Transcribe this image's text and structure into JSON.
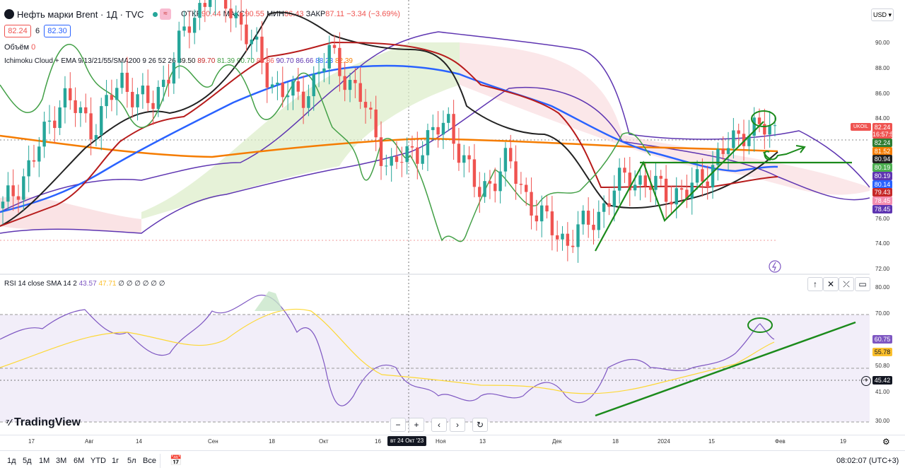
{
  "header": {
    "symbol_title": "Нефть марки Brent · 1Д · TVC",
    "otkr_label": "ОТКР",
    "otkr": "90.44",
    "maks_label": "МАКС",
    "maks": "90.55",
    "min_label": "МИН",
    "min": "86.43",
    "zakr_label": "ЗАКР",
    "zakr": "87.11",
    "change": "−3.34 (−3.69%)",
    "bid": "82.24",
    "spread": "6",
    "ask": "82.30",
    "currency": "USD"
  },
  "indicators": {
    "volume_label": "Объём",
    "volume_value": "0",
    "ichimoku_label": "Ichimoku Cloud + EMA 9/13/21/55/SMA200 9 26 52 26",
    "ichimoku_values": [
      "89.50",
      "89.70",
      "81.39",
      "90.70",
      "86.86",
      "90.70",
      "86.66",
      "88.23",
      "82.39"
    ],
    "rsi_label": "RSI 14 close SMA 14 2",
    "rsi_value": "43.57",
    "rsi_sma": "47.71",
    "rsi_zeros": "∅ ∅ ∅ ∅ ∅ ∅"
  },
  "price_axis": {
    "ticks": [
      "90.00",
      "88.00",
      "86.00",
      "84.00",
      "76.00",
      "74.00",
      "72.00"
    ],
    "symbol_tag": "UKOIL",
    "tags": [
      {
        "text": "82.24",
        "color": "#ef5350"
      },
      {
        "text": "16:57:53",
        "color": "#ef5350"
      },
      {
        "text": "82.24",
        "color": "#2e7d32"
      },
      {
        "text": "81.52",
        "color": "#f57c00"
      },
      {
        "text": "80.94",
        "color": "#222222"
      },
      {
        "text": "80.19",
        "color": "#4caf50"
      },
      {
        "text": "80.19",
        "color": "#5e35b1"
      },
      {
        "text": "80.14",
        "color": "#2962ff"
      },
      {
        "text": "79.43",
        "color": "#c62828"
      },
      {
        "text": "78.45",
        "color": "#f48fb1"
      },
      {
        "text": "78.45",
        "color": "#5e35b1"
      }
    ]
  },
  "rsi_axis": {
    "ticks": [
      "80.00",
      "70.00",
      "50.80",
      "41.00",
      "30.00"
    ],
    "tags": [
      {
        "text": "60.75",
        "color": "#7e57c2"
      },
      {
        "text": "55.78",
        "color": "#fbc02d"
      },
      {
        "text": "45.42",
        "color": "#131722"
      }
    ]
  },
  "time_axis": {
    "labels": [
      "17",
      "Авг",
      "14",
      "Сен",
      "18",
      "Окт",
      "16",
      "Ноя",
      "13",
      "Дек",
      "18",
      "2024",
      "15",
      "Фев",
      "19"
    ],
    "cursor_label": "вт 24 Окт '23"
  },
  "bottom_bar": {
    "ranges": [
      "1д",
      "5д",
      "1М",
      "3М",
      "6М",
      "YTD",
      "1г",
      "5л",
      "Все"
    ],
    "clock": "08:02:07 (UTC+3)"
  },
  "brand": "TradingView",
  "chart_data": {
    "type": "candlestick",
    "title": "Нефть марки Brent · 1Д · TVC",
    "x_range": [
      "2023-07-14",
      "2024-02-23"
    ],
    "price_ylim": [
      72,
      91
    ],
    "price_close_approx": [
      76.5,
      80,
      85,
      82.5,
      86,
      84,
      89,
      93,
      90.5,
      86,
      84.5,
      88,
      85,
      79.5,
      81,
      83,
      77.5,
      80,
      76,
      74,
      76,
      79,
      78,
      77.5,
      80,
      82.5,
      82.24
    ],
    "moving_average_200": 81.52,
    "rsi_ylim": [
      30,
      80
    ],
    "rsi_levels": [
      70,
      50.8,
      30
    ],
    "rsi_last": 60.75,
    "rsi_sma_last": 55.78
  }
}
